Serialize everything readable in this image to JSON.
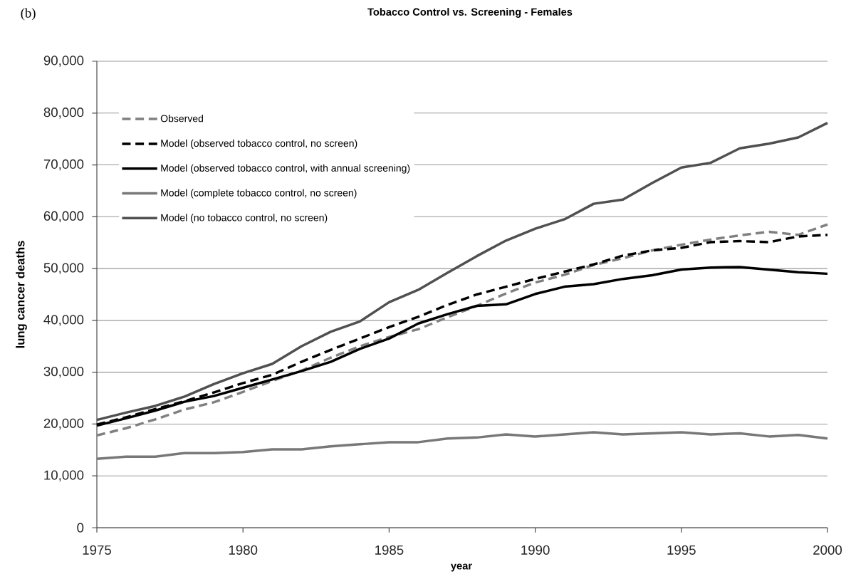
{
  "chart_data": {
    "type": "line",
    "title": "Tobacco Control vs. Screening - Females",
    "xlabel": "year",
    "ylabel": "lung cancer deaths",
    "annotations": [
      "(b)"
    ],
    "x": [
      1975,
      1976,
      1977,
      1978,
      1979,
      1980,
      1981,
      1982,
      1983,
      1984,
      1985,
      1986,
      1987,
      1988,
      1989,
      1990,
      1991,
      1992,
      1993,
      1994,
      1995,
      1996,
      1997,
      1998,
      1999,
      2000
    ],
    "xlim": [
      1975,
      2000
    ],
    "xticks": [
      1975,
      1980,
      1985,
      1990,
      1995,
      2000
    ],
    "ylim": [
      0,
      90000
    ],
    "yticks": [
      0,
      {
        "value": 10000,
        "label": "10,000"
      },
      {
        "value": 20000,
        "label": "20,000"
      },
      {
        "value": 30000,
        "label": "30,000"
      },
      {
        "value": 40000,
        "label": "40,000"
      },
      {
        "value": 50000,
        "label": "50,000"
      },
      {
        "value": 60000,
        "label": "60,000"
      },
      {
        "value": 70000,
        "label": "70,000"
      },
      {
        "value": 80000,
        "label": "80,000"
      },
      {
        "value": 90000,
        "label": "90,000"
      }
    ],
    "grid": "y",
    "legend": "top left",
    "series": [
      {
        "name": "Observed",
        "color": "#808080",
        "line_style": "dashed",
        "values": [
          17800,
          19200,
          20900,
          22800,
          24200,
          26200,
          28300,
          30300,
          32800,
          35000,
          36800,
          38300,
          40600,
          42800,
          45200,
          47300,
          48800,
          50700,
          52000,
          53500,
          54600,
          55600,
          56400,
          57100,
          56500,
          58500
        ]
      },
      {
        "name": "Model (observed tobacco control, no screen)",
        "color": "#000000",
        "line_style": "dashed",
        "values": [
          19900,
          21300,
          22900,
          24400,
          26100,
          27900,
          29500,
          32000,
          34300,
          36500,
          38700,
          40700,
          43000,
          45000,
          46500,
          48000,
          49400,
          50800,
          52500,
          53500,
          54000,
          55100,
          55300,
          55100,
          56200,
          56500
        ]
      },
      {
        "name": "Model (observed tobacco control, with annual screening)",
        "color": "#000000",
        "line_style": "solid",
        "values": [
          19700,
          21100,
          22600,
          24300,
          25400,
          27000,
          28600,
          30200,
          32000,
          34500,
          36500,
          39400,
          41200,
          42800,
          43100,
          45100,
          46500,
          47000,
          48000,
          48700,
          49800,
          50200,
          50300,
          49800,
          49300,
          49000
        ]
      },
      {
        "name": "Model (complete tobacco control, no screen)",
        "color": "#787878",
        "line_style": "solid",
        "values": [
          13300,
          13700,
          13700,
          14400,
          14400,
          14600,
          15100,
          15100,
          15700,
          16100,
          16500,
          16500,
          17200,
          17400,
          18000,
          17600,
          18000,
          18400,
          18000,
          18200,
          18400,
          18000,
          18200,
          17600,
          17900,
          17200
        ]
      },
      {
        "name": "Model (no tobacco control, no screen)",
        "color": "#505050",
        "line_style": "solid",
        "values": [
          20800,
          22200,
          23500,
          25300,
          27700,
          29800,
          31600,
          35000,
          37800,
          39800,
          43500,
          45900,
          49200,
          52400,
          55400,
          57700,
          59500,
          62500,
          63300,
          66500,
          69500,
          70400,
          73200,
          74100,
          75300,
          78100
        ]
      }
    ]
  }
}
